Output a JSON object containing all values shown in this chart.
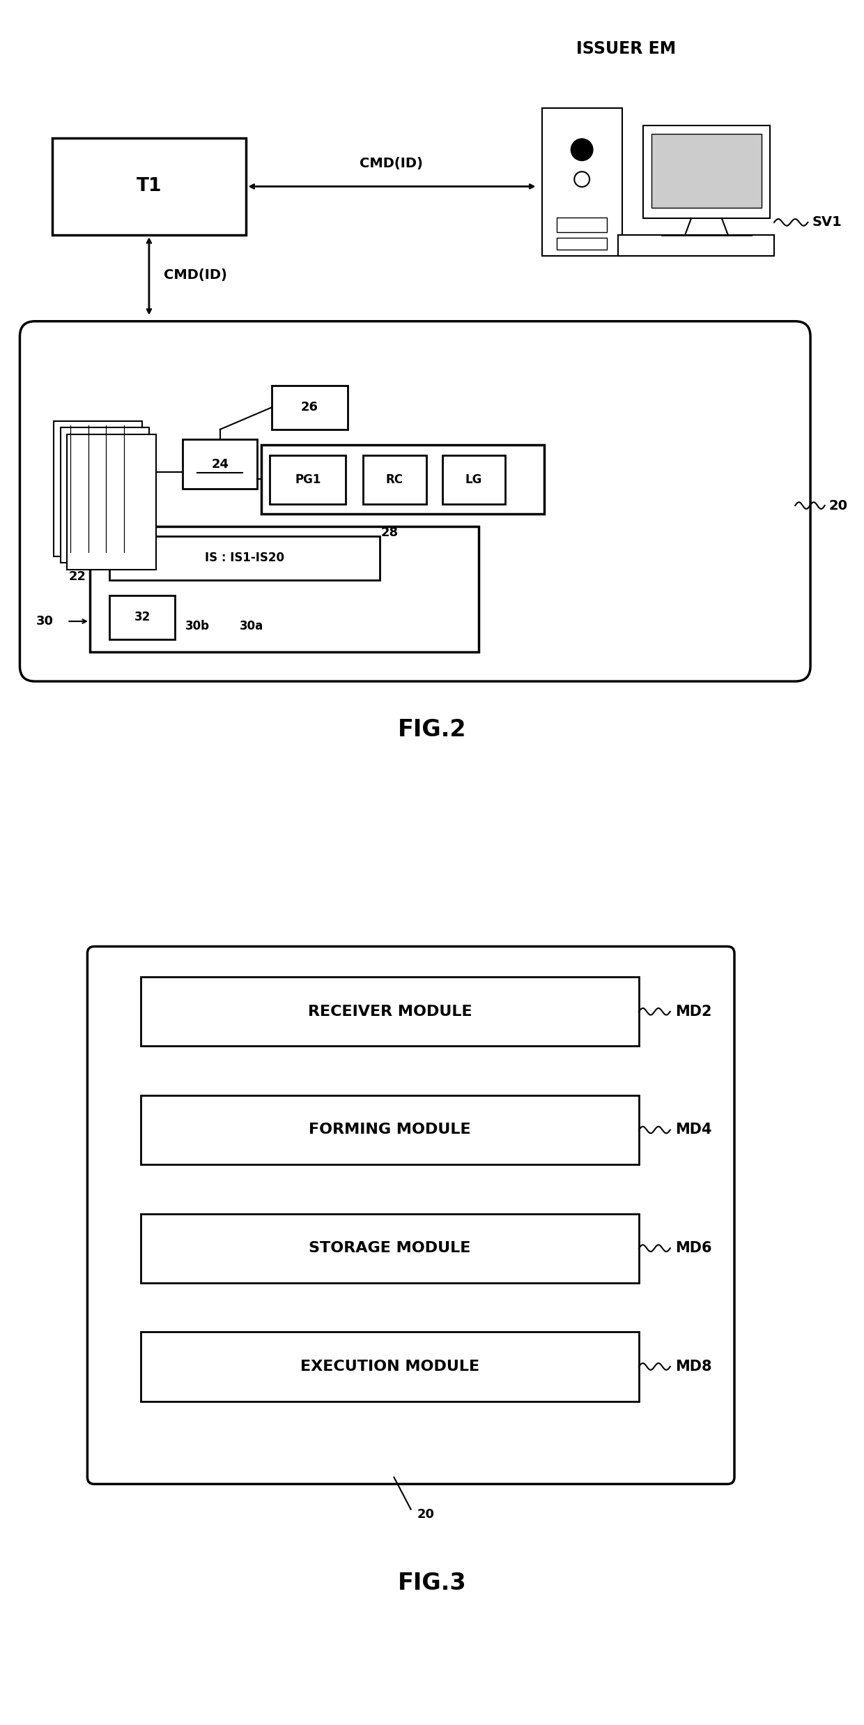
{
  "fig_title": "FIG.2",
  "fig3_title": "FIG.3",
  "bg_color": "#ffffff",
  "line_color": "#000000",
  "fig2": {
    "issuer_label": "ISSUER EM",
    "sv1_label": "SV1",
    "t1_label": "T1",
    "cmd_label_horiz": "CMD(ID)",
    "cmd_label_vert": "CMD(ID)",
    "label_22": "22",
    "label_24": "24",
    "label_26": "26",
    "label_28": "28",
    "label_30": "30",
    "label_30a": "30a",
    "label_30b": "30b",
    "label_32": "32",
    "label_20": "20",
    "pg1_label": "PG1",
    "rc_label": "RC",
    "lg_label": "LG",
    "is_label": "IS : IS1-IS20"
  },
  "fig3": {
    "modules": [
      "RECEIVER MODULE",
      "FORMING MODULE",
      "STORAGE MODULE",
      "EXECUTION MODULE"
    ],
    "labels": [
      "MD2",
      "MD4",
      "MD6",
      "MD8"
    ],
    "label_20": "20"
  }
}
